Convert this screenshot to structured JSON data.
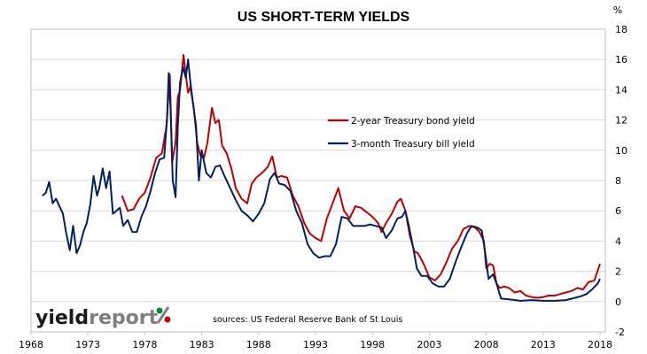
{
  "chart_data": {
    "type": "line",
    "title": "US SHORT-TERM YIELDS",
    "ylabel": "%",
    "xlabel": "",
    "ylim": [
      -2,
      18
    ],
    "xlim": [
      1968,
      2018
    ],
    "grid": true,
    "y_axis_position": "right",
    "y_ticks": [
      -2,
      0,
      2,
      4,
      6,
      8,
      10,
      12,
      14,
      16,
      18
    ],
    "x_ticks": [
      1968,
      1973,
      1978,
      1983,
      1988,
      1993,
      1998,
      2003,
      2008,
      2013,
      2018
    ],
    "legend_position": "center-right",
    "series": [
      {
        "name": "2-year Treasury bond yield",
        "color": "#c00000",
        "x": [
          1976.0,
          1976.5,
          1977.0,
          1977.5,
          1978.0,
          1978.5,
          1979.0,
          1979.5,
          1979.9,
          1980.2,
          1980.4,
          1980.7,
          1980.9,
          1981.1,
          1981.4,
          1981.6,
          1981.8,
          1982.0,
          1982.3,
          1982.6,
          1982.9,
          1983.2,
          1983.5,
          1983.9,
          1984.2,
          1984.5,
          1984.8,
          1985.2,
          1985.6,
          1986.0,
          1986.5,
          1987.0,
          1987.4,
          1987.8,
          1988.3,
          1988.8,
          1989.2,
          1989.6,
          1990.0,
          1990.5,
          1991.0,
          1991.5,
          1992.0,
          1992.5,
          1993.0,
          1993.5,
          1994.0,
          1994.5,
          1995.0,
          1995.5,
          1996.0,
          1996.5,
          1997.0,
          1997.5,
          1998.0,
          1998.5,
          1998.8,
          1999.2,
          1999.7,
          2000.2,
          2000.5,
          2000.9,
          2001.3,
          2001.7,
          2002.0,
          2002.5,
          2003.0,
          2003.5,
          2004.0,
          2004.5,
          2005.0,
          2005.5,
          2006.0,
          2006.5,
          2007.0,
          2007.4,
          2007.8,
          2008.0,
          2008.3,
          2008.6,
          2008.9,
          2009.2,
          2009.6,
          2010.0,
          2010.5,
          2011.0,
          2011.5,
          2012.0,
          2012.5,
          2013.0,
          2013.5,
          2014.0,
          2014.5,
          2015.0,
          2015.5,
          2016.0,
          2016.5,
          2017.0,
          2017.5,
          2018.0
        ],
        "values": [
          7.0,
          6.0,
          6.1,
          6.8,
          7.2,
          8.2,
          9.5,
          9.8,
          11.6,
          15.0,
          9.2,
          10.5,
          13.5,
          14.0,
          16.3,
          15.0,
          13.8,
          14.2,
          12.8,
          10.5,
          9.6,
          9.5,
          10.5,
          12.8,
          11.8,
          12.0,
          10.3,
          9.8,
          8.8,
          7.5,
          6.8,
          6.5,
          7.8,
          8.2,
          8.5,
          8.9,
          9.6,
          8.2,
          8.3,
          8.2,
          7.0,
          6.3,
          5.2,
          4.5,
          4.2,
          4.0,
          5.5,
          6.5,
          7.5,
          6.0,
          5.5,
          6.3,
          6.2,
          5.9,
          5.6,
          5.2,
          4.6,
          5.2,
          5.8,
          6.6,
          6.8,
          6.0,
          4.3,
          3.3,
          3.2,
          2.5,
          1.6,
          1.4,
          1.8,
          2.6,
          3.5,
          4.0,
          4.8,
          5.0,
          4.9,
          4.6,
          4.0,
          2.2,
          2.5,
          2.4,
          1.2,
          0.9,
          1.0,
          0.9,
          0.6,
          0.7,
          0.4,
          0.3,
          0.25,
          0.3,
          0.4,
          0.4,
          0.5,
          0.6,
          0.7,
          0.9,
          0.8,
          1.3,
          1.4,
          2.5
        ]
      },
      {
        "name": "3-month Treasury bill yield",
        "color": "#002060",
        "x": [
          1969.0,
          1969.3,
          1969.6,
          1969.9,
          1970.2,
          1970.5,
          1970.8,
          1971.1,
          1971.4,
          1971.7,
          1972.0,
          1972.3,
          1972.6,
          1972.9,
          1973.2,
          1973.5,
          1973.8,
          1974.0,
          1974.3,
          1974.6,
          1974.9,
          1975.2,
          1975.5,
          1975.8,
          1976.1,
          1976.5,
          1976.9,
          1977.3,
          1977.7,
          1978.1,
          1978.5,
          1978.9,
          1979.3,
          1979.7,
          1979.95,
          1980.1,
          1980.25,
          1980.45,
          1980.7,
          1980.9,
          1981.1,
          1981.35,
          1981.6,
          1981.8,
          1982.0,
          1982.25,
          1982.5,
          1982.75,
          1983.0,
          1983.4,
          1983.8,
          1984.2,
          1984.6,
          1985.0,
          1985.5,
          1986.0,
          1986.5,
          1987.0,
          1987.5,
          1988.0,
          1988.5,
          1989.0,
          1989.4,
          1989.8,
          1990.3,
          1990.8,
          1991.3,
          1991.8,
          1992.3,
          1992.8,
          1993.3,
          1993.8,
          1994.3,
          1994.8,
          1995.3,
          1995.8,
          1996.3,
          1996.8,
          1997.3,
          1997.8,
          1998.3,
          1998.8,
          1999.2,
          1999.7,
          2000.2,
          2000.6,
          2000.9,
          2001.2,
          2001.6,
          2001.9,
          2002.3,
          2002.8,
          2003.3,
          2003.8,
          2004.3,
          2004.8,
          2005.3,
          2005.8,
          2006.3,
          2006.7,
          2007.2,
          2007.6,
          2007.9,
          2008.2,
          2008.6,
          2008.9,
          2009.3,
          2010.0,
          2011.0,
          2012.0,
          2013.0,
          2014.0,
          2015.0,
          2015.8,
          2016.3,
          2016.8,
          2017.3,
          2017.8,
          2018.0
        ],
        "values": [
          7.0,
          7.2,
          7.9,
          6.5,
          6.8,
          6.3,
          5.8,
          4.5,
          3.4,
          5.0,
          3.2,
          3.7,
          4.6,
          5.2,
          6.4,
          8.3,
          7.0,
          7.5,
          8.8,
          7.5,
          8.6,
          5.8,
          6.0,
          6.2,
          5.0,
          5.4,
          4.6,
          4.6,
          5.6,
          6.3,
          7.3,
          8.5,
          9.4,
          9.5,
          12.0,
          15.1,
          13.0,
          8.0,
          6.9,
          11.5,
          14.5,
          15.5,
          14.8,
          16.0,
          14.5,
          13.0,
          11.6,
          8.0,
          10.0,
          8.5,
          8.2,
          8.9,
          9.0,
          8.3,
          7.5,
          6.7,
          6.0,
          5.7,
          5.3,
          5.8,
          6.5,
          8.1,
          8.5,
          7.8,
          7.7,
          7.3,
          6.0,
          5.2,
          3.8,
          3.2,
          2.9,
          3.0,
          3.0,
          3.8,
          5.6,
          5.5,
          5.0,
          5.0,
          5.0,
          5.1,
          5.0,
          4.9,
          4.2,
          4.7,
          5.5,
          5.6,
          6.0,
          5.0,
          3.5,
          2.2,
          1.7,
          1.7,
          1.2,
          1.0,
          1.0,
          1.5,
          2.6,
          3.6,
          4.5,
          5.0,
          4.9,
          4.7,
          3.3,
          1.5,
          1.8,
          1.2,
          0.2,
          0.15,
          0.05,
          0.1,
          0.05,
          0.05,
          0.1,
          0.25,
          0.35,
          0.5,
          0.8,
          1.2,
          1.5
        ]
      }
    ]
  },
  "branding": {
    "logo_part1": "yield",
    "logo_part2": "report",
    "logo_symbol": "%",
    "source_text": "sources: US Federal Reserve Bank of St Louis"
  }
}
